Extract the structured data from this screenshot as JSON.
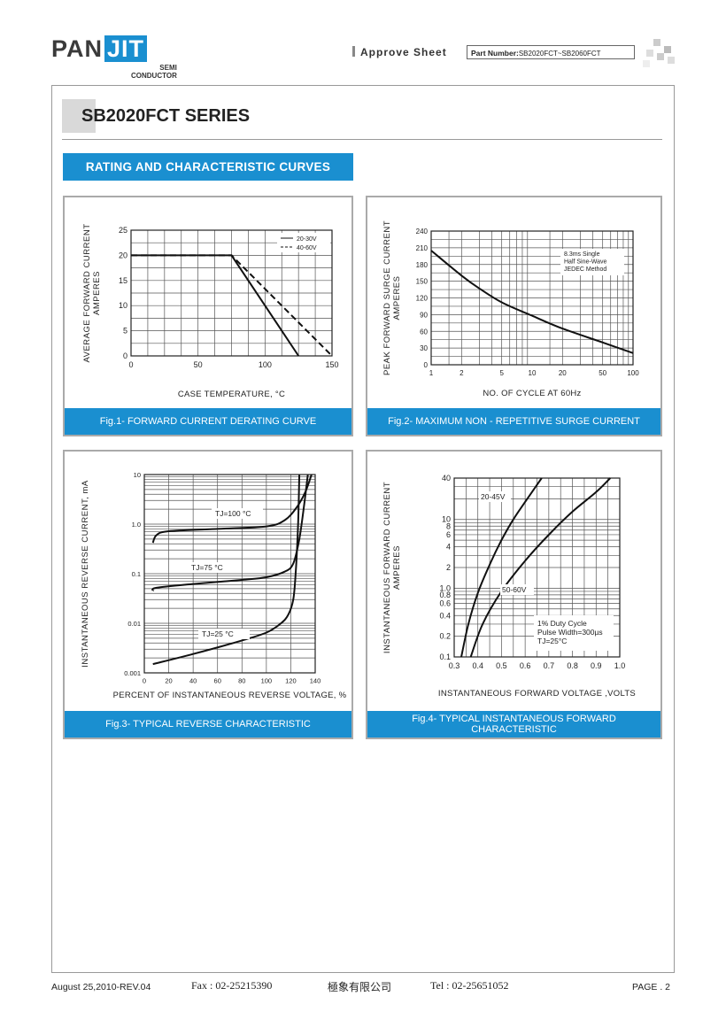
{
  "header": {
    "logo_pan": "PAN",
    "logo_jit": "JIT",
    "logo_semi": "SEMI",
    "logo_conductor": "CONDUCTOR",
    "approve_sheet": "Approve Sheet",
    "part_number_label": "Part Number:",
    "part_number_value": "SB2020FCT~SB2060FCT"
  },
  "page_title": "SB2020FCT SERIES",
  "section_title": "RATING AND CHARACTERISTIC CURVES",
  "chart_data": [
    {
      "type": "line",
      "caption": "Fig.1- FORWARD CURRENT DERATING CURVE",
      "xlabel": "CASE TEMPERATURE, °C",
      "ylabel": "AVERAGE FORWARD CURRENT AMPERES",
      "xlim": [
        0,
        150
      ],
      "ylim": [
        0,
        25
      ],
      "xticks": [
        "0",
        "50",
        "100",
        "150"
      ],
      "yticks": [
        "0",
        "5",
        "10",
        "15",
        "20",
        "25"
      ],
      "grid": true,
      "legend": "top-right",
      "series": [
        {
          "name": "20-30V",
          "style": "solid",
          "points": [
            [
              0,
              20
            ],
            [
              75,
              20
            ],
            [
              125,
              0
            ]
          ]
        },
        {
          "name": "40-60V",
          "style": "dashed",
          "points": [
            [
              0,
              20
            ],
            [
              75,
              20
            ],
            [
              150,
              0
            ]
          ]
        }
      ]
    },
    {
      "type": "line",
      "caption": "Fig.2- MAXIMUM NON - REPETITIVE SURGE CURRENT",
      "xlabel": "NO. OF CYCLE AT 60Hz",
      "ylabel": "PEAK FORWARD SURGE CURRENT AMPERES",
      "xscale": "log",
      "xlim": [
        1,
        100
      ],
      "ylim": [
        0,
        240
      ],
      "xticks": [
        "1",
        "2",
        "5",
        "10",
        "20",
        "50",
        "100"
      ],
      "yticks": [
        "0",
        "30",
        "60",
        "90",
        "120",
        "150",
        "180",
        "210",
        "240"
      ],
      "grid": true,
      "annotation": [
        "8.3ms Single",
        "Half Sine-Wave",
        "JEDEC Method"
      ],
      "series": [
        {
          "points": [
            [
              1,
              205
            ],
            [
              2,
              160
            ],
            [
              3,
              137
            ],
            [
              5,
              112
            ],
            [
              10,
              88
            ],
            [
              20,
              65
            ],
            [
              50,
              40
            ],
            [
              100,
              21
            ]
          ]
        }
      ]
    },
    {
      "type": "line",
      "caption": "Fig.3- TYPICAL REVERSE CHARACTERISTIC",
      "xlabel": "PERCENT OF INSTANTANEOUS REVERSE VOLTAGE, %",
      "ylabel": "INSTANTANEOUS REVERSE CURRENT, mA",
      "yscale": "log",
      "xlim": [
        0,
        140
      ],
      "ylim": [
        0.001,
        10
      ],
      "xticks": [
        "0",
        "20",
        "40",
        "60",
        "80",
        "100",
        "120",
        "140"
      ],
      "yticks": [
        "0.001",
        "0.01",
        "0.1",
        "1.0",
        "10"
      ],
      "grid": true,
      "series": [
        {
          "name": "TJ=100 °C",
          "points": [
            [
              7,
              0.42
            ],
            [
              10,
              0.6
            ],
            [
              20,
              0.72
            ],
            [
              60,
              0.8
            ],
            [
              100,
              0.9
            ],
            [
              115,
              1.2
            ],
            [
              125,
              2.2
            ],
            [
              132,
              4.5
            ],
            [
              137,
              10
            ]
          ]
        },
        {
          "name": "TJ=75 °C",
          "points": [
            [
              7,
              0.045
            ],
            [
              10,
              0.052
            ],
            [
              40,
              0.062
            ],
            [
              80,
              0.075
            ],
            [
              100,
              0.085
            ],
            [
              115,
              0.11
            ],
            [
              122,
              0.16
            ],
            [
              127,
              0.5
            ],
            [
              131,
              2.5
            ],
            [
              134,
              10
            ]
          ]
        },
        {
          "name": "TJ=25 °C",
          "points": [
            [
              7,
              0.0015
            ],
            [
              40,
              0.0024
            ],
            [
              80,
              0.0045
            ],
            [
              100,
              0.0065
            ],
            [
              112,
              0.01
            ],
            [
              118,
              0.015
            ],
            [
              122,
              0.03
            ],
            [
              124,
              0.1
            ],
            [
              126,
              1
            ],
            [
              127,
              10
            ]
          ]
        }
      ]
    },
    {
      "type": "line",
      "caption": "Fig.4- TYPICAL INSTANTANEOUS FORWARD CHARACTERISTIC",
      "xlabel": "INSTANTANEOUS FORWARD VOLTAGE ,VOLTS",
      "ylabel": "INSTANTANEOUS FORWARD CURRENT AMPERES",
      "yscale": "log",
      "xlim": [
        0.3,
        1.0
      ],
      "ylim": [
        0.1,
        40
      ],
      "xticks": [
        "0.3",
        "0.4",
        "0.5",
        "0.6",
        "0.7",
        "0.8",
        "0.9",
        "1.0"
      ],
      "yticks": [
        "0.1",
        "0.2",
        "0.4",
        "0.6",
        "0.8",
        "1.0",
        "2",
        "4",
        "6",
        "8",
        "10",
        "40"
      ],
      "grid": true,
      "annotation": [
        "1% Duty Cycle",
        "Pulse Width=300µs",
        "TJ=25°C"
      ],
      "series": [
        {
          "name": "20-45V",
          "points": [
            [
              0.33,
              0.1
            ],
            [
              0.36,
              0.3
            ],
            [
              0.4,
              0.85
            ],
            [
              0.45,
              2.2
            ],
            [
              0.5,
              5
            ],
            [
              0.55,
              10
            ],
            [
              0.6,
              18
            ],
            [
              0.67,
              40
            ]
          ]
        },
        {
          "name": "50-60V",
          "points": [
            [
              0.37,
              0.1
            ],
            [
              0.42,
              0.3
            ],
            [
              0.5,
              0.9
            ],
            [
              0.6,
              2.5
            ],
            [
              0.7,
              6
            ],
            [
              0.8,
              13
            ],
            [
              0.9,
              25
            ],
            [
              0.96,
              40
            ]
          ]
        }
      ]
    }
  ],
  "footer": {
    "date_rev": "August 25,2010-REV.04",
    "fax": "Fax : 02-25215390",
    "company": "極象有限公司",
    "tel": "Tel : 02-25651052",
    "page": "PAGE . 2"
  }
}
